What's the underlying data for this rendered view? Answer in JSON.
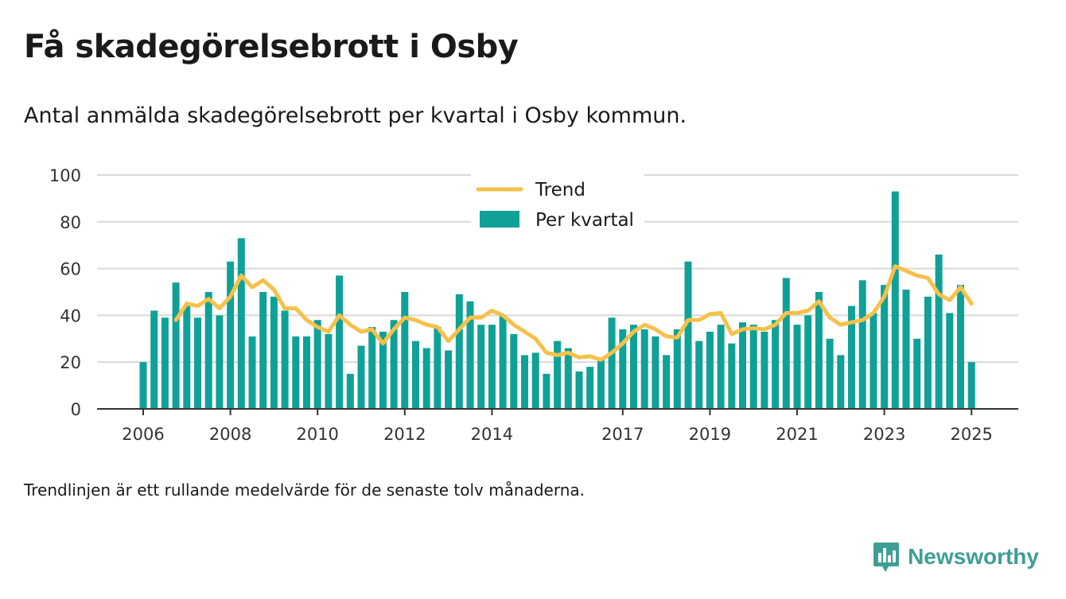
{
  "title": "Få skadegörelsebrott i Osby",
  "subtitle": "Antal anmälda skadegörelsebrott per kvartal i Osby kommun.",
  "footnote": "Trendlinjen är ett rullande medelvärde för de senaste tolv månaderna.",
  "brand": {
    "name": "Newsworthy",
    "icon": "newsworthy-logo-icon",
    "color": "#3e9e94"
  },
  "chart_data": {
    "type": "bar",
    "ylim": [
      0,
      100
    ],
    "yticks": [
      0,
      20,
      40,
      60,
      80,
      100
    ],
    "xticks": [
      "2006",
      "2008",
      "2010",
      "2012",
      "2014",
      "2017",
      "2019",
      "2021",
      "2023",
      "2025"
    ],
    "grid": true,
    "legend_position": "top-center",
    "colors": {
      "bars": "#0fa197",
      "trend": "#f5c14a",
      "grid": "#d9d9d9",
      "axis": "#333333"
    },
    "series": [
      {
        "name": "Per kvartal",
        "kind": "bar",
        "x": [
          "2006-01",
          "2006-04",
          "2006-07",
          "2006-10",
          "2007-01",
          "2007-04",
          "2007-07",
          "2007-10",
          "2008-01",
          "2008-04",
          "2008-07",
          "2008-10",
          "2009-01",
          "2009-04",
          "2009-07",
          "2009-10",
          "2010-01",
          "2010-04",
          "2010-07",
          "2010-10",
          "2011-01",
          "2011-04",
          "2011-07",
          "2011-10",
          "2012-01",
          "2012-04",
          "2012-07",
          "2012-10",
          "2013-01",
          "2013-04",
          "2013-07",
          "2013-10",
          "2014-01",
          "2014-04",
          "2014-07",
          "2014-10",
          "2015-01",
          "2015-04",
          "2015-07",
          "2015-10",
          "2016-01",
          "2016-04",
          "2016-07",
          "2016-10",
          "2017-01",
          "2017-04",
          "2017-07",
          "2017-10",
          "2018-01",
          "2018-04",
          "2018-07",
          "2018-10",
          "2019-01",
          "2019-04",
          "2019-07",
          "2019-10",
          "2020-01",
          "2020-04",
          "2020-07",
          "2020-10",
          "2021-01",
          "2021-04",
          "2021-07",
          "2021-10",
          "2022-01",
          "2022-04",
          "2022-07",
          "2022-10",
          "2023-01",
          "2023-04",
          "2023-07",
          "2023-10",
          "2024-01",
          "2024-04",
          "2024-07",
          "2024-10",
          "2025-01"
        ],
        "values": [
          20,
          42,
          39,
          54,
          44,
          39,
          50,
          40,
          63,
          73,
          31,
          50,
          48,
          42,
          31,
          31,
          38,
          32,
          57,
          15,
          27,
          35,
          33,
          38,
          50,
          29,
          26,
          35,
          25,
          49,
          46,
          36,
          36,
          40,
          32,
          23,
          24,
          15,
          29,
          26,
          16,
          18,
          21,
          39,
          34,
          36,
          34,
          31,
          23,
          34,
          63,
          29,
          33,
          36,
          28,
          37,
          36,
          33,
          38,
          56,
          36,
          40,
          50,
          30,
          23,
          44,
          55,
          41,
          53,
          93,
          51,
          30,
          48,
          66,
          41,
          53,
          20
        ]
      },
      {
        "name": "Trend",
        "kind": "line",
        "x": [
          "2006-10",
          "2007-01",
          "2007-04",
          "2007-07",
          "2007-10",
          "2008-01",
          "2008-04",
          "2008-07",
          "2008-10",
          "2009-01",
          "2009-04",
          "2009-07",
          "2009-10",
          "2010-01",
          "2010-04",
          "2010-07",
          "2010-10",
          "2011-01",
          "2011-04",
          "2011-07",
          "2011-10",
          "2012-01",
          "2012-04",
          "2012-07",
          "2012-10",
          "2013-01",
          "2013-04",
          "2013-07",
          "2013-10",
          "2014-01",
          "2014-04",
          "2014-07",
          "2014-10",
          "2015-01",
          "2015-04",
          "2015-07",
          "2015-10",
          "2016-01",
          "2016-04",
          "2016-07",
          "2016-10",
          "2017-01",
          "2017-04",
          "2017-07",
          "2017-10",
          "2018-01",
          "2018-04",
          "2018-07",
          "2018-10",
          "2019-01",
          "2019-04",
          "2019-07",
          "2019-10",
          "2020-01",
          "2020-04",
          "2020-07",
          "2020-10",
          "2021-01",
          "2021-04",
          "2021-07",
          "2021-10",
          "2022-01",
          "2022-04",
          "2022-07",
          "2022-10",
          "2023-01",
          "2023-04",
          "2023-07",
          "2023-10",
          "2024-01",
          "2024-04",
          "2024-07",
          "2024-10",
          "2025-01"
        ],
        "values": [
          38,
          45,
          44,
          47,
          43,
          48,
          57,
          52,
          55,
          51,
          43,
          43,
          38,
          35,
          33,
          40,
          36,
          33,
          34,
          28,
          34,
          39,
          38,
          36,
          35,
          29,
          34,
          39,
          39,
          42,
          40,
          36,
          33,
          30,
          24,
          23,
          24,
          22,
          22.5,
          21,
          24,
          28,
          33,
          36,
          34,
          31,
          30.5,
          38,
          38,
          40.5,
          41,
          32,
          34,
          34.5,
          34,
          36,
          41,
          41,
          42,
          46,
          39,
          36,
          37,
          38,
          41,
          48,
          61,
          59,
          57,
          56,
          49,
          46.5,
          52,
          45
        ]
      }
    ]
  }
}
